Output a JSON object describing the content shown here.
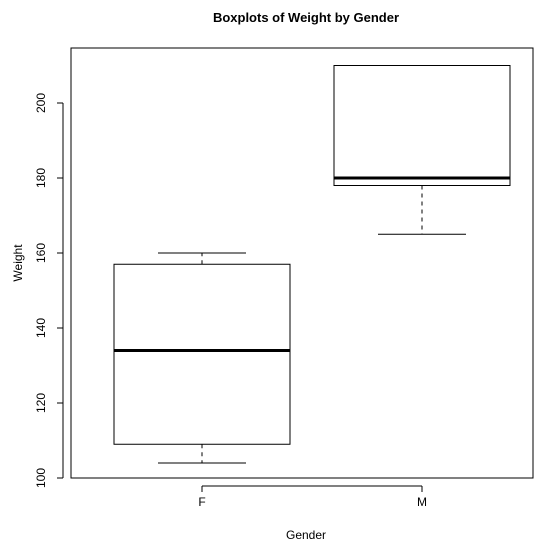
{
  "chart_data": {
    "type": "boxplot",
    "title": "Boxplots of Weight by Gender",
    "xlabel": "Gender",
    "ylabel": "Weight",
    "categories": [
      "F",
      "M"
    ],
    "ylim": [
      100,
      212
    ],
    "yticks": [
      100,
      120,
      140,
      160,
      180,
      200
    ],
    "boxes": [
      {
        "category": "F",
        "whisker_low": 104,
        "q1": 109,
        "median": 134,
        "q3": 157,
        "whisker_high": 160
      },
      {
        "category": "M",
        "whisker_low": 165,
        "q1": 178,
        "median": 180,
        "q3": 210,
        "whisker_high": 210
      }
    ],
    "grid": false,
    "colors": {
      "box": "#000000",
      "background": "#ffffff"
    }
  }
}
